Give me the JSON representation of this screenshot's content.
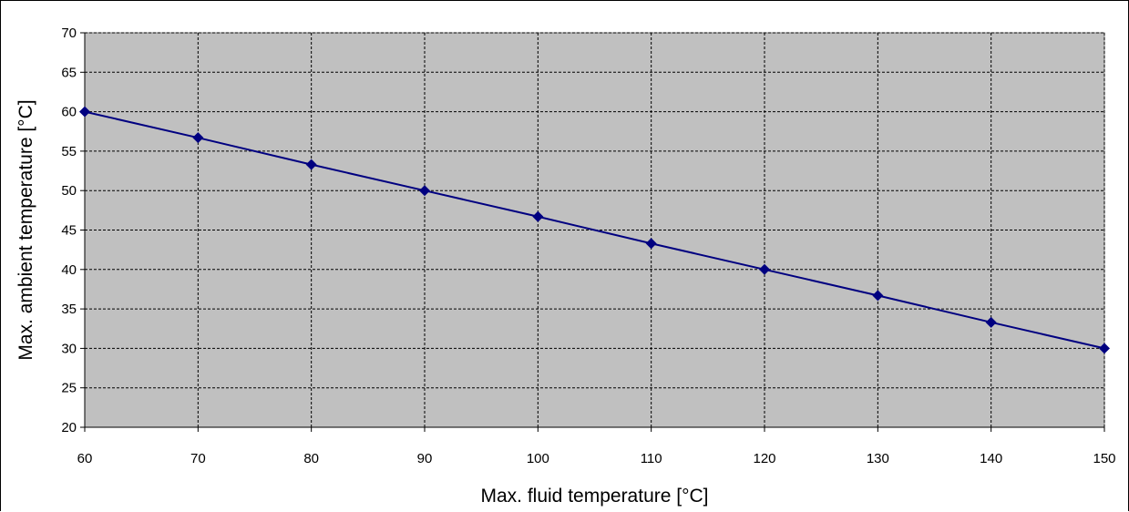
{
  "chart_data": {
    "type": "line",
    "title": "",
    "xlabel": "Max. fluid temperature [°C]",
    "ylabel": "Max. ambient temperature [°C]",
    "xlim": [
      60,
      150
    ],
    "ylim": [
      20,
      70
    ],
    "x_ticks": [
      60,
      70,
      80,
      90,
      100,
      110,
      120,
      130,
      140,
      150
    ],
    "y_ticks": [
      20,
      25,
      30,
      35,
      40,
      45,
      50,
      55,
      60,
      65,
      70
    ],
    "grid": true,
    "legend": "none",
    "plot_background": "#c0c0c0",
    "series": [
      {
        "color": "#000080",
        "marker": "diamond",
        "x": [
          60,
          70,
          80,
          90,
          100,
          110,
          120,
          130,
          140,
          150
        ],
        "y": [
          60,
          56.7,
          53.3,
          50,
          46.7,
          43.3,
          40,
          36.7,
          33.3,
          30
        ]
      }
    ]
  }
}
